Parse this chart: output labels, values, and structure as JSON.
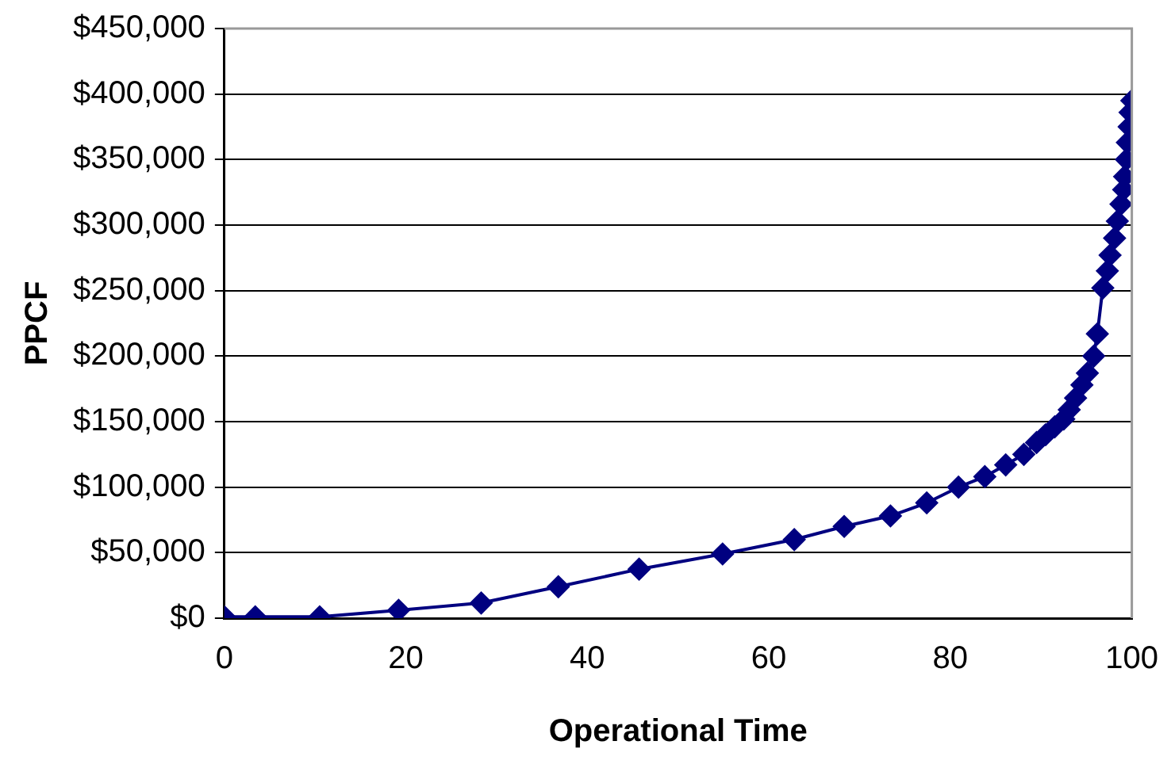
{
  "chart_data": {
    "type": "line",
    "xlabel": "Operational Time",
    "ylabel": "PPCF",
    "x": [
      0,
      3.4,
      10.5,
      19.2,
      28.3,
      36.8,
      45.7,
      54.9,
      62.8,
      68.3,
      73.4,
      77.4,
      80.9,
      83.8,
      86.1,
      88.1,
      89.5,
      90.5,
      91.5,
      92.5,
      93.1,
      93.8,
      94.5,
      95.1,
      95.8,
      96.2,
      96.8,
      97.3,
      97.6,
      98.1,
      98.4,
      98.8,
      99.1,
      99.2,
      99.4,
      99.5,
      99.7,
      99.8,
      100
    ],
    "series": [
      {
        "color": "#000080",
        "values": [
          1000,
          1000,
          1000,
          6000,
          11600,
          24000,
          37400,
          49000,
          60000,
          70000,
          78000,
          88000,
          100000,
          108000,
          117000,
          125000,
          134000,
          140000,
          146000,
          152000,
          159000,
          168000,
          178000,
          187000,
          200000,
          217000,
          252000,
          265000,
          277000,
          290000,
          303000,
          316000,
          327000,
          337000,
          350000,
          363000,
          375000,
          386000,
          395000
        ]
      }
    ],
    "xlim": [
      0,
      100
    ],
    "xticks": [
      0,
      20,
      40,
      60,
      80,
      100
    ],
    "ylim": [
      0,
      450000
    ],
    "yticks": [
      {
        "value": 0,
        "label": "$0"
      },
      {
        "value": 50000,
        "label": "$50,000"
      },
      {
        "value": 100000,
        "label": "$100,000"
      },
      {
        "value": 150000,
        "label": "$150,000"
      },
      {
        "value": 200000,
        "label": "$200,000"
      },
      {
        "value": 250000,
        "label": "$250,000"
      },
      {
        "value": 300000,
        "label": "$300,000"
      },
      {
        "value": 350000,
        "label": "$350,000"
      },
      {
        "value": 400000,
        "label": "$400,000"
      },
      {
        "value": 450000,
        "label": "$450,000"
      }
    ],
    "grid": "y",
    "legend": false,
    "marker": "diamond",
    "line_style": "solid"
  }
}
